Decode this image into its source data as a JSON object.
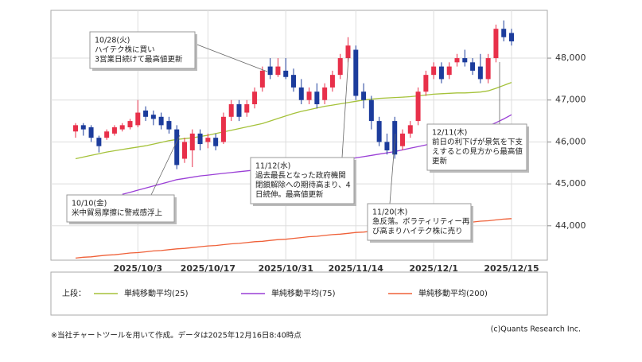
{
  "chart_data": {
    "type": "candlestick",
    "categories": [
      null,
      null,
      null,
      null,
      null,
      null,
      null,
      null,
      "2025/10/3",
      null,
      null,
      null,
      null,
      null,
      null,
      null,
      null,
      "2025/10/17",
      null,
      null,
      null,
      null,
      null,
      null,
      null,
      null,
      null,
      "2025/10/31",
      null,
      null,
      null,
      null,
      null,
      null,
      null,
      null,
      "2025/11/14",
      null,
      null,
      null,
      null,
      null,
      null,
      null,
      null,
      null,
      "2025/12/1",
      null,
      null,
      null,
      null,
      null,
      null,
      null,
      null,
      null,
      "2025/12/15"
    ],
    "open": [
      46250,
      46400,
      46350,
      46100,
      46100,
      46200,
      46300,
      46350,
      46400,
      46750,
      46650,
      46600,
      46500,
      46300,
      45600,
      45800,
      46200,
      46000,
      46100,
      46000,
      46600,
      46900,
      46700,
      46900,
      47300,
      47800,
      47600,
      47700,
      47600,
      47300,
      47000,
      47200,
      47000,
      47300,
      47600,
      48000,
      48200,
      47200,
      47000,
      46500,
      46000,
      46500,
      45900,
      46200,
      46500,
      47200,
      47600,
      47800,
      47600,
      47900,
      48000,
      47900,
      47800,
      47500,
      48000,
      48700,
      48600
    ],
    "high": [
      46450,
      46450,
      46400,
      46150,
      46300,
      46400,
      46450,
      46550,
      47000,
      46850,
      46750,
      46700,
      46600,
      46400,
      46100,
      46300,
      46300,
      46200,
      46200,
      46700,
      47000,
      47000,
      47000,
      47300,
      47800,
      48000,
      48000,
      48000,
      47750,
      47500,
      47300,
      47400,
      47400,
      47700,
      48100,
      48500,
      48300,
      47400,
      47100,
      46600,
      46200,
      46600,
      46300,
      46500,
      47300,
      47700,
      47900,
      47900,
      47900,
      48100,
      48200,
      48000,
      48100,
      48100,
      48800,
      48900,
      48700
    ],
    "low": [
      46100,
      46150,
      46000,
      45750,
      46050,
      46150,
      46250,
      46300,
      46350,
      46500,
      46400,
      46300,
      46200,
      45350,
      45500,
      45400,
      45800,
      45850,
      45800,
      45950,
      46500,
      46500,
      46600,
      46800,
      47200,
      47500,
      47550,
      47500,
      47200,
      46900,
      46900,
      46800,
      46900,
      47200,
      47500,
      47900,
      47000,
      46800,
      46300,
      45900,
      45700,
      45600,
      45800,
      46100,
      46400,
      47100,
      47500,
      47400,
      47500,
      47800,
      47800,
      47600,
      47400,
      47400,
      47900,
      48400,
      48300
    ],
    "close": [
      46400,
      46300,
      46100,
      45900,
      46250,
      46350,
      46400,
      46500,
      46700,
      46600,
      46550,
      46400,
      46300,
      45450,
      46000,
      46200,
      45950,
      46100,
      45900,
      46600,
      46900,
      46600,
      46900,
      47200,
      47700,
      47600,
      47800,
      47550,
      47300,
      47000,
      47200,
      46900,
      47300,
      47600,
      48000,
      48300,
      47100,
      47000,
      46500,
      46000,
      45800,
      45700,
      46200,
      46400,
      47200,
      47600,
      47800,
      47500,
      47800,
      48000,
      47900,
      47700,
      47500,
      48000,
      48700,
      48500,
      48400
    ],
    "up_color": "#e8304a",
    "down_color": "#1c3c9c",
    "series": [
      {
        "name": "単純移動平均(25)",
        "color": "#a5c23a",
        "values": [
          45600,
          45640,
          45680,
          45720,
          45760,
          45790,
          45820,
          45850,
          45880,
          45910,
          45950,
          45990,
          46030,
          46060,
          46080,
          46100,
          46130,
          46160,
          46200,
          46240,
          46280,
          46320,
          46360,
          46400,
          46440,
          46500,
          46560,
          46620,
          46680,
          46730,
          46770,
          46810,
          46850,
          46880,
          46910,
          46940,
          46970,
          47000,
          47020,
          47040,
          47050,
          47060,
          47070,
          47080,
          47100,
          47120,
          47140,
          47150,
          47160,
          47170,
          47170,
          47180,
          47190,
          47220,
          47280,
          47350,
          47420
        ]
      },
      {
        "name": "単純移動平均(75)",
        "color": "#9a3fd6",
        "values": [
          null,
          null,
          null,
          null,
          null,
          null,
          44750,
          44800,
          44850,
          44900,
          44950,
          45000,
          45050,
          45100,
          45130,
          45160,
          45190,
          45210,
          45230,
          45250,
          45270,
          45290,
          45310,
          45330,
          45350,
          45370,
          45390,
          45410,
          45430,
          45450,
          45470,
          45490,
          45510,
          45530,
          45560,
          45590,
          45620,
          45650,
          45680,
          45710,
          45740,
          45770,
          45810,
          45850,
          45890,
          45930,
          45980,
          46030,
          46080,
          46130,
          46180,
          46240,
          46300,
          46380,
          46460,
          46550,
          46650
        ]
      },
      {
        "name": "単純移動平均(200)",
        "color": "#ef6038",
        "values": [
          43230,
          43250,
          43260,
          43280,
          43300,
          43310,
          43330,
          43350,
          43360,
          43380,
          43400,
          43410,
          43430,
          43450,
          43460,
          43480,
          43500,
          43520,
          43530,
          43550,
          43570,
          43580,
          43600,
          43620,
          43630,
          43650,
          43670,
          43680,
          43700,
          43720,
          43740,
          43750,
          43770,
          43790,
          43800,
          43820,
          43840,
          43850,
          43870,
          43890,
          43900,
          43920,
          43940,
          43960,
          43970,
          43990,
          44010,
          44020,
          44040,
          44060,
          44070,
          44090,
          44110,
          44120,
          44140,
          44160,
          44170
        ]
      }
    ],
    "ylim": [
      43180,
      49140
    ],
    "yticks": [
      {
        "value": 44000,
        "label": "44,000"
      },
      {
        "value": 45000,
        "label": "45,000"
      },
      {
        "value": 46000,
        "label": "46,000"
      },
      {
        "value": 47000,
        "label": "47,000"
      },
      {
        "value": 48000,
        "label": "48,000"
      }
    ],
    "grid": true,
    "legend_title": "上段：",
    "annotations": [
      {
        "lines": [
          "10/28(火)",
          "ハイテク株に買い",
          "3営業日続けて最高値更新"
        ]
      },
      {
        "lines": [
          "10/10(金)",
          "米中貿易摩擦に警戒感浮上"
        ]
      },
      {
        "lines": [
          "11/12(水)",
          "過去最長となった政府機関",
          "閉鎖解除への期待高まり、4",
          "日続伸。最高値更新"
        ]
      },
      {
        "lines": [
          "11/20(木)",
          "急反落。ボラティリティー再",
          "び高まりハイテク株に売り"
        ]
      },
      {
        "lines": [
          "12/11(木)",
          "前日の利下げが景気を下支",
          "えするとの見方から最高値",
          "更新"
        ]
      }
    ],
    "footnote": "※当社チャートツールを用いて作成。データは2025年12月16日8:40時点",
    "credit": "(c)Quants Research Inc."
  }
}
